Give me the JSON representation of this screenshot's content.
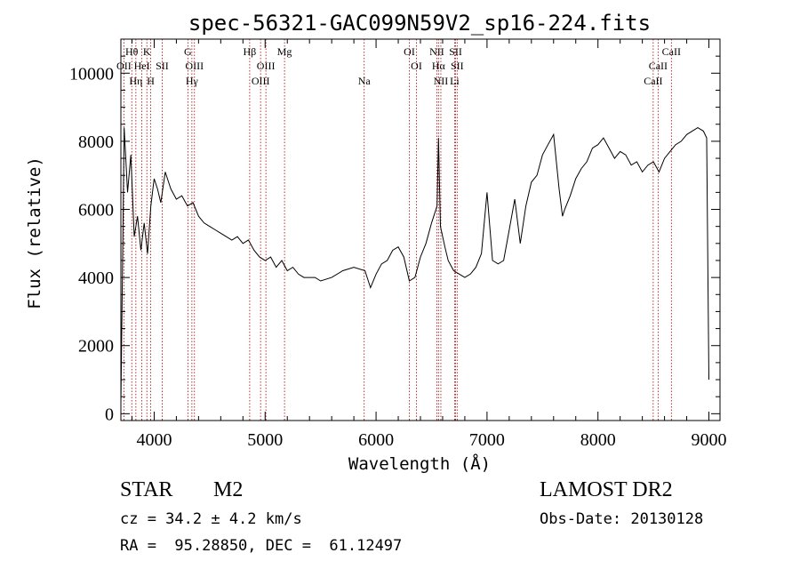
{
  "chart_data": {
    "type": "line",
    "title": "spec-56321-GAC099N59V2_sp16-224.fits",
    "xlabel": "Wavelength (Å)",
    "ylabel": "Flux (relative)",
    "xlim": [
      3700,
      9100
    ],
    "ylim": [
      -200,
      11000
    ],
    "xticks": [
      4000,
      5000,
      6000,
      7000,
      8000,
      9000
    ],
    "yticks": [
      0,
      2000,
      4000,
      6000,
      8000,
      10000
    ],
    "grid": false,
    "line_color": "#000000",
    "marker_color": "#aa0000",
    "series": [
      {
        "x": [
          3700,
          3730,
          3760,
          3790,
          3820,
          3850,
          3880,
          3910,
          3940,
          3970,
          4000,
          4030,
          4060,
          4100,
          4150,
          4200,
          4250,
          4300,
          4350,
          4400,
          4450,
          4500,
          4550,
          4600,
          4650,
          4700,
          4750,
          4800,
          4850,
          4900,
          4950,
          5000,
          5050,
          5100,
          5150,
          5200,
          5250,
          5300,
          5350,
          5400,
          5450,
          5500,
          5600,
          5700,
          5800,
          5900,
          5950,
          6000,
          6050,
          6100,
          6150,
          6200,
          6250,
          6300,
          6350,
          6400,
          6450,
          6500,
          6550,
          6563,
          6580,
          6620,
          6650,
          6700,
          6750,
          6800,
          6850,
          6900,
          6950,
          7000,
          7050,
          7100,
          7150,
          7200,
          7250,
          7300,
          7350,
          7400,
          7450,
          7500,
          7550,
          7600,
          7650,
          7680,
          7700,
          7750,
          7800,
          7850,
          7900,
          7950,
          8000,
          8050,
          8100,
          8150,
          8200,
          8250,
          8300,
          8350,
          8400,
          8450,
          8500,
          8550,
          8600,
          8650,
          8700,
          8750,
          8800,
          8850,
          8900,
          8950,
          8980,
          9000
        ],
        "y": [
          300,
          8400,
          6500,
          7600,
          5200,
          5800,
          4800,
          5600,
          4700,
          6100,
          6900,
          6600,
          6200,
          7100,
          6600,
          6300,
          6400,
          6100,
          6200,
          5800,
          5600,
          5500,
          5400,
          5300,
          5200,
          5100,
          5200,
          5000,
          5100,
          4800,
          4600,
          4500,
          4600,
          4300,
          4500,
          4200,
          4300,
          4100,
          4000,
          4000,
          4000,
          3900,
          4000,
          4200,
          4300,
          4200,
          3700,
          4100,
          4400,
          4500,
          4800,
          4900,
          4600,
          3900,
          4000,
          4600,
          5000,
          5600,
          6100,
          8100,
          5500,
          4900,
          4500,
          4200,
          4100,
          4000,
          4100,
          4300,
          4700,
          6500,
          4500,
          4400,
          4500,
          5400,
          6300,
          5000,
          6100,
          6800,
          7000,
          7600,
          7900,
          8200,
          6600,
          5800,
          6000,
          6400,
          6900,
          7200,
          7400,
          7800,
          7900,
          8100,
          7800,
          7500,
          7700,
          7600,
          7300,
          7400,
          7100,
          7300,
          7400,
          7100,
          7500,
          7700,
          7900,
          8000,
          8200,
          8300,
          8400,
          8300,
          8100,
          1000
        ]
      }
    ],
    "spectral_lines": [
      {
        "label": "Hθ",
        "x": 3798,
        "row": 0
      },
      {
        "label": "K",
        "x": 3934,
        "row": 0
      },
      {
        "label": "G",
        "x": 4304,
        "row": 0
      },
      {
        "label": "Hβ",
        "x": 4861,
        "row": 0
      },
      {
        "label": "Mg",
        "x": 5175,
        "row": 0
      },
      {
        "label": "OI",
        "x": 6300,
        "row": 0
      },
      {
        "label": "NII",
        "x": 6548,
        "row": 0
      },
      {
        "label": "SII",
        "x": 6717,
        "row": 0
      },
      {
        "label": "CaII",
        "x": 8662,
        "row": 0
      },
      {
        "label": "OII",
        "x": 3727,
        "row": 1
      },
      {
        "label": "HeI",
        "x": 3889,
        "row": 1
      },
      {
        "label": "SII",
        "x": 4072,
        "row": 1
      },
      {
        "label": "OIII",
        "x": 4363,
        "row": 1
      },
      {
        "label": "OIII",
        "x": 5007,
        "row": 1
      },
      {
        "label": "OI",
        "x": 6364,
        "row": 1
      },
      {
        "label": "Hα",
        "x": 6563,
        "row": 1
      },
      {
        "label": "SII",
        "x": 6731,
        "row": 1
      },
      {
        "label": "CaII",
        "x": 8542,
        "row": 1
      },
      {
        "label": "Hη",
        "x": 3835,
        "row": 2
      },
      {
        "label": "H",
        "x": 3969,
        "row": 2
      },
      {
        "label": "Hγ",
        "x": 4340,
        "row": 2
      },
      {
        "label": "OIII",
        "x": 4959,
        "row": 2
      },
      {
        "label": "Na",
        "x": 5893,
        "row": 2
      },
      {
        "label": "NII",
        "x": 6584,
        "row": 2
      },
      {
        "label": "Li",
        "x": 6708,
        "row": 2
      },
      {
        "label": "CaII",
        "x": 8498,
        "row": 2
      }
    ]
  },
  "info": {
    "object_class": "STAR",
    "subclass": "M2",
    "survey": "LAMOST DR2",
    "cz": "cz = 34.2 ± 4.2 km/s",
    "obs_date": "Obs-Date: 20130128",
    "coords": "RA =  95.28850, DEC =  61.12497"
  }
}
